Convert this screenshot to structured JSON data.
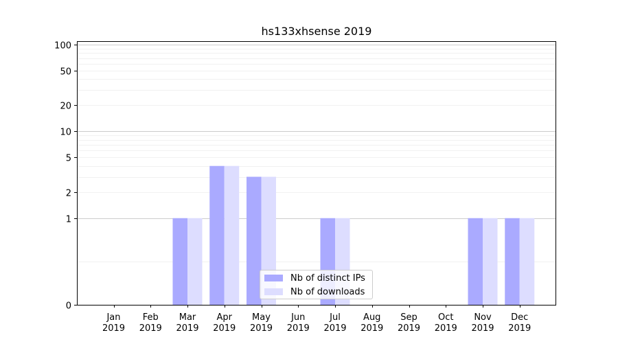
{
  "chart_data": {
    "type": "bar",
    "title": "hs133xhsense 2019",
    "xlabel": "",
    "ylabel": "",
    "yscale": "symlog",
    "ylim": [
      0,
      110
    ],
    "yticks": [
      0,
      1,
      2,
      5,
      10,
      20,
      50,
      100
    ],
    "grid": true,
    "legend_position": "lower center",
    "categories": [
      "Jan\n2019",
      "Feb\n2019",
      "Mar\n2019",
      "Apr\n2019",
      "May\n2019",
      "Jun\n2019",
      "Jul\n2019",
      "Aug\n2019",
      "Sep\n2019",
      "Oct\n2019",
      "Nov\n2019",
      "Dec\n2019"
    ],
    "series": [
      {
        "name": "Nb of distinct IPs",
        "color": "#aaaaff",
        "values": [
          0,
          0,
          1,
          4,
          3,
          0,
          1,
          0,
          0,
          0,
          1,
          1
        ]
      },
      {
        "name": "Nb of downloads",
        "color": "#ddddff",
        "values": [
          0,
          0,
          1,
          4,
          3,
          0,
          1,
          0,
          0,
          0,
          1,
          1
        ]
      }
    ]
  }
}
